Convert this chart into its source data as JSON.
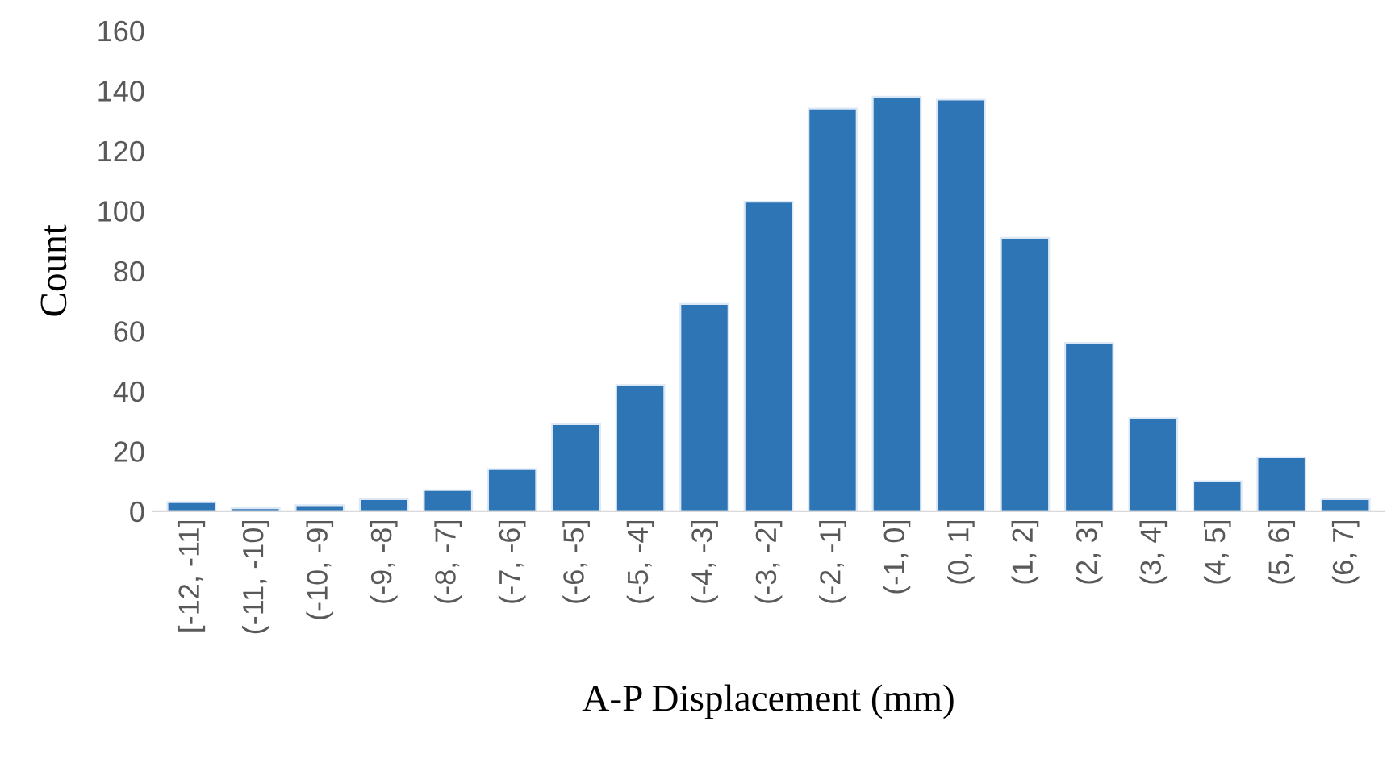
{
  "chart_data": {
    "type": "bar",
    "xlabel": "A-P Displacement (mm)",
    "ylabel": "Count",
    "categories": [
      "[-12, -11]",
      "(-11, -10]",
      "(-10, -9]",
      "(-9, -8]",
      "(-8, -7]",
      "(-7, -6]",
      "(-6, -5]",
      "(-5, -4]",
      "(-4, -3]",
      "(-3, -2]",
      "(-2, -1]",
      "(-1, 0]",
      "(0, 1]",
      "(1, 2]",
      "(2, 3]",
      "(3, 4]",
      "(4, 5]",
      "(5, 6]",
      "(6, 7]"
    ],
    "values": [
      3,
      1,
      2,
      4,
      7,
      14,
      29,
      42,
      69,
      103,
      134,
      138,
      137,
      91,
      56,
      31,
      10,
      18,
      4
    ],
    "color": "#2e75b6",
    "ylim": [
      0,
      160
    ],
    "yticks": [
      0,
      20,
      40,
      60,
      80,
      100,
      120,
      140,
      160
    ],
    "grid": false
  }
}
